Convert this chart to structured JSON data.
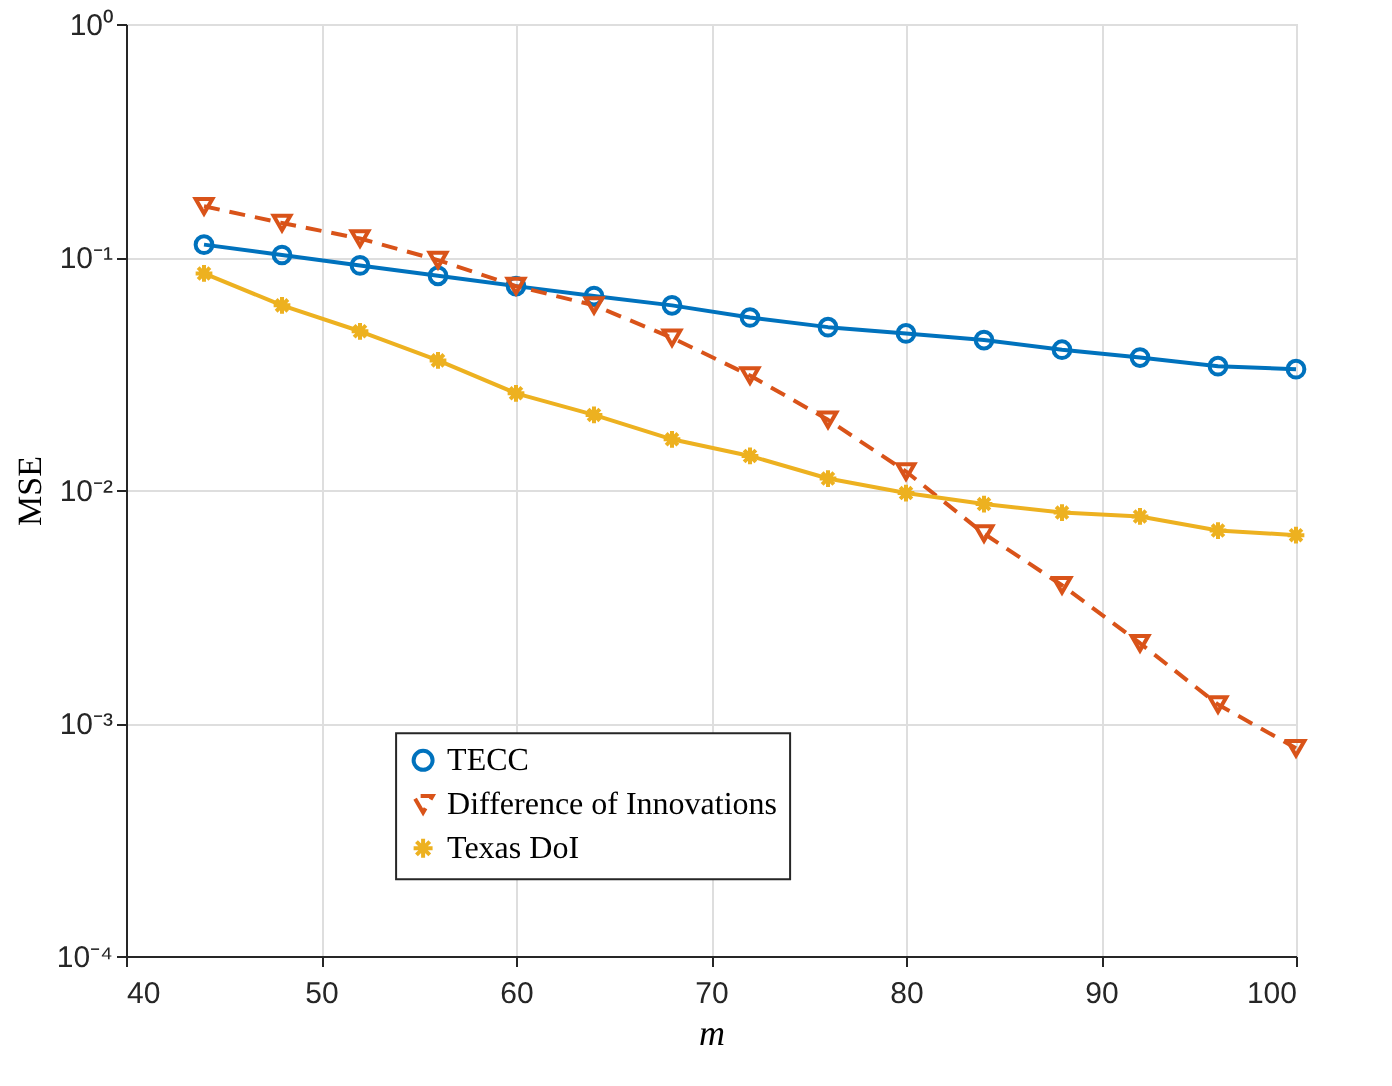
{
  "chart_data": {
    "type": "line",
    "xlabel": "m",
    "ylabel": "MSE",
    "x": [
      44,
      48,
      52,
      56,
      60,
      64,
      68,
      72,
      76,
      80,
      84,
      88,
      92,
      96,
      100
    ],
    "series": [
      {
        "name": "TECC",
        "color": "#0072bd",
        "marker": "circle",
        "line_style": "solid",
        "values": [
          0.113,
          0.102,
          0.092,
          0.083,
          0.075,
          0.068,
          0.062,
          0.055,
          0.05,
          0.047,
          0.044,
          0.04,
          0.037,
          0.034,
          0.033
        ]
      },
      {
        "name": "Difference of Innovations",
        "color": "#d95319",
        "marker": "triangle",
        "line_style": "dashed",
        "values": [
          0.165,
          0.14,
          0.12,
          0.097,
          0.075,
          0.062,
          0.045,
          0.031,
          0.02,
          0.012,
          0.0065,
          0.0039,
          0.0022,
          0.0012,
          0.00078
        ]
      },
      {
        "name": "Texas DoI",
        "color": "#edb120",
        "marker": "cross",
        "line_style": "solid",
        "values": [
          0.085,
          0.062,
          0.048,
          0.036,
          0.026,
          0.021,
          0.0165,
          0.014,
          0.0112,
          0.0097,
          0.0087,
          0.008,
          0.0077,
          0.0067,
          0.0064
        ]
      }
    ],
    "xlim": [
      40,
      100
    ],
    "xticks": [
      40,
      50,
      60,
      70,
      80,
      90,
      100
    ],
    "ylim": [
      0.0001,
      1
    ],
    "yticks": [
      {
        "value": 0.0001,
        "label": "10⁻⁴"
      },
      {
        "value": 0.001,
        "label": "10⁻³"
      },
      {
        "value": 0.01,
        "label": "10⁻²"
      },
      {
        "value": 0.1,
        "label": "10⁻¹"
      },
      {
        "value": 1,
        "label": "10⁰"
      }
    ],
    "log": true,
    "grid": true,
    "legend": "bottom"
  }
}
